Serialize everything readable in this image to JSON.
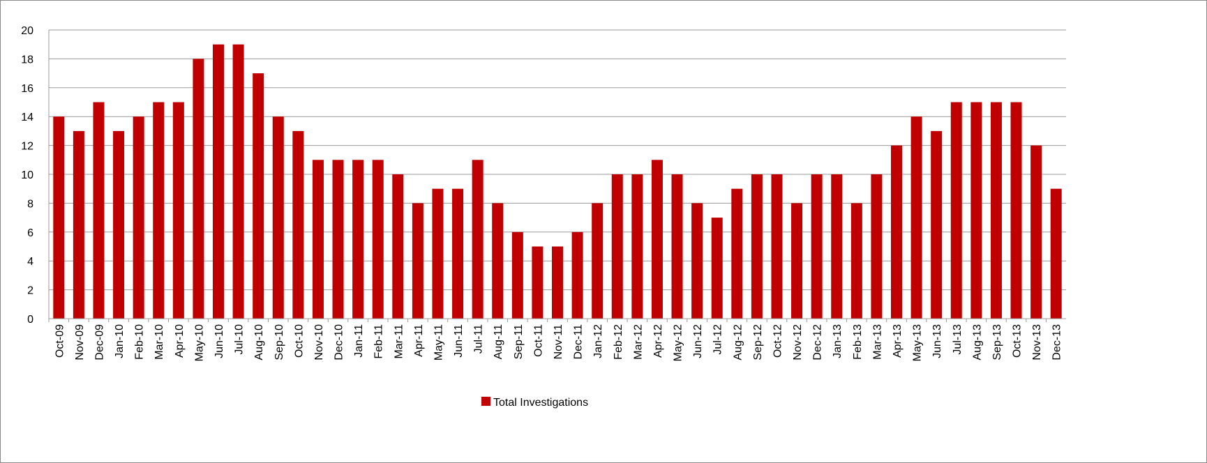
{
  "chart_data": {
    "type": "bar",
    "categories": [
      "Oct-09",
      "Nov-09",
      "Dec-09",
      "Jan-10",
      "Feb-10",
      "Mar-10",
      "Apr-10",
      "May-10",
      "Jun-10",
      "Jul-10",
      "Aug-10",
      "Sep-10",
      "Oct-10",
      "Nov-10",
      "Dec-10",
      "Jan-11",
      "Feb-11",
      "Mar-11",
      "Apr-11",
      "May-11",
      "Jun-11",
      "Jul-11",
      "Aug-11",
      "Sep-11",
      "Oct-11",
      "Nov-11",
      "Dec-11",
      "Jan-12",
      "Feb-12",
      "Mar-12",
      "Apr-12",
      "May-12",
      "Jun-12",
      "Jul-12",
      "Aug-12",
      "Sep-12",
      "Oct-12",
      "Nov-12",
      "Dec-12",
      "Jan-13",
      "Feb-13",
      "Mar-13",
      "Apr-13",
      "May-13",
      "Jun-13",
      "Jul-13",
      "Aug-13",
      "Sep-13",
      "Oct-13",
      "Nov-13",
      "Dec-13"
    ],
    "series": [
      {
        "name": "Total Investigations",
        "color": "#c00000",
        "values": [
          14,
          13,
          15,
          13,
          14,
          15,
          15,
          18,
          19,
          19,
          17,
          14,
          13,
          11,
          11,
          11,
          11,
          10,
          8,
          9,
          9,
          11,
          8,
          6,
          5,
          5,
          6,
          8,
          10,
          10,
          11,
          10,
          8,
          7,
          9,
          10,
          10,
          8,
          10,
          10,
          8,
          10,
          12,
          14,
          13,
          15,
          15,
          15,
          15,
          12,
          9
        ]
      }
    ],
    "ylim": [
      0,
      20
    ],
    "yticks": [
      0,
      2,
      4,
      6,
      8,
      10,
      12,
      14,
      16,
      18,
      20
    ],
    "grid": true,
    "legend": "bottom"
  }
}
